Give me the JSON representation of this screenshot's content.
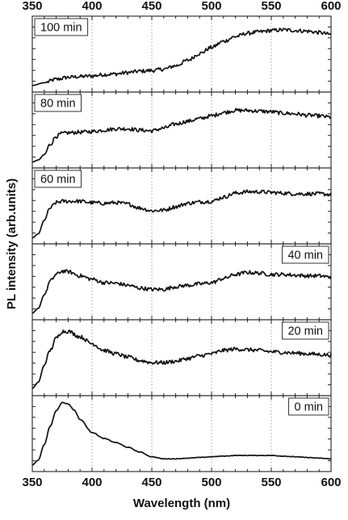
{
  "chart_data": {
    "type": "line",
    "title": "",
    "xlabel": "Wavelength (nm)",
    "ylabel": "PL intensity (arb.units)",
    "xlim": [
      350,
      600
    ],
    "x_ticks": [
      350,
      400,
      450,
      500,
      550,
      600
    ],
    "x_tick_labels": [
      "350",
      "400",
      "450",
      "500",
      "550",
      "600"
    ],
    "ylim": [
      0,
      1
    ],
    "y_tick_labels": "none (arbitrary units)",
    "grid": "vertical dotted lines at 400, 450, 500, 550",
    "layout": "6 vertically stacked panels sharing the x axis; top axis repeats tick labels",
    "panels": [
      {
        "label": "100 min",
        "label_position": "top-left",
        "x": [
          350,
          360,
          370,
          380,
          390,
          400,
          410,
          420,
          430,
          440,
          450,
          460,
          470,
          480,
          490,
          500,
          510,
          520,
          530,
          540,
          550,
          560,
          570,
          580,
          590,
          600
        ],
        "y": [
          0.05,
          0.09,
          0.14,
          0.17,
          0.18,
          0.19,
          0.21,
          0.22,
          0.24,
          0.26,
          0.27,
          0.29,
          0.34,
          0.42,
          0.52,
          0.61,
          0.7,
          0.77,
          0.82,
          0.84,
          0.86,
          0.87,
          0.86,
          0.85,
          0.83,
          0.8
        ]
      },
      {
        "label": "80 min",
        "label_position": "top-left",
        "x": [
          350,
          355,
          360,
          365,
          370,
          375,
          380,
          390,
          400,
          410,
          420,
          430,
          440,
          450,
          460,
          470,
          480,
          490,
          500,
          510,
          520,
          530,
          540,
          550,
          560,
          570,
          580,
          590,
          600
        ],
        "y": [
          0.04,
          0.07,
          0.15,
          0.3,
          0.42,
          0.46,
          0.47,
          0.48,
          0.49,
          0.51,
          0.53,
          0.53,
          0.51,
          0.5,
          0.54,
          0.6,
          0.64,
          0.68,
          0.72,
          0.77,
          0.8,
          0.8,
          0.79,
          0.78,
          0.76,
          0.75,
          0.73,
          0.72,
          0.7
        ]
      },
      {
        "label": "60 min",
        "label_position": "top-left",
        "x": [
          350,
          355,
          360,
          365,
          370,
          375,
          380,
          390,
          400,
          410,
          420,
          430,
          440,
          450,
          460,
          470,
          480,
          490,
          500,
          510,
          520,
          530,
          540,
          550,
          560,
          570,
          580,
          590,
          600
        ],
        "y": [
          0.04,
          0.1,
          0.3,
          0.48,
          0.56,
          0.58,
          0.58,
          0.58,
          0.56,
          0.55,
          0.56,
          0.54,
          0.48,
          0.44,
          0.45,
          0.5,
          0.55,
          0.57,
          0.58,
          0.64,
          0.7,
          0.72,
          0.72,
          0.71,
          0.7,
          0.69,
          0.69,
          0.69,
          0.68
        ]
      },
      {
        "label": "40 min",
        "label_position": "top-right",
        "x": [
          350,
          355,
          360,
          365,
          370,
          375,
          380,
          390,
          400,
          410,
          420,
          430,
          440,
          450,
          460,
          470,
          480,
          490,
          500,
          510,
          520,
          530,
          540,
          550,
          560,
          570,
          580,
          590,
          600
        ],
        "y": [
          0.05,
          0.12,
          0.32,
          0.52,
          0.62,
          0.67,
          0.66,
          0.6,
          0.55,
          0.5,
          0.49,
          0.46,
          0.42,
          0.4,
          0.4,
          0.44,
          0.46,
          0.48,
          0.5,
          0.56,
          0.62,
          0.65,
          0.64,
          0.62,
          0.62,
          0.61,
          0.6,
          0.6,
          0.58
        ]
      },
      {
        "label": "20 min",
        "label_position": "top-right",
        "x": [
          350,
          355,
          360,
          365,
          370,
          375,
          380,
          390,
          400,
          410,
          420,
          430,
          440,
          450,
          460,
          470,
          480,
          490,
          500,
          510,
          520,
          530,
          540,
          550,
          560,
          570,
          580,
          590,
          600
        ],
        "y": [
          0.06,
          0.15,
          0.4,
          0.62,
          0.8,
          0.9,
          0.9,
          0.82,
          0.72,
          0.62,
          0.57,
          0.52,
          0.47,
          0.44,
          0.44,
          0.46,
          0.5,
          0.54,
          0.57,
          0.62,
          0.64,
          0.63,
          0.62,
          0.6,
          0.59,
          0.58,
          0.57,
          0.56,
          0.55
        ]
      },
      {
        "label": "0 min",
        "label_position": "top-right",
        "x": [
          350,
          355,
          360,
          365,
          370,
          375,
          380,
          385,
          390,
          400,
          410,
          420,
          430,
          440,
          450,
          460,
          470,
          480,
          490,
          500,
          510,
          520,
          530,
          540,
          550,
          560,
          570,
          580,
          590,
          600
        ],
        "y": [
          0.05,
          0.12,
          0.35,
          0.62,
          0.85,
          0.97,
          0.95,
          0.86,
          0.72,
          0.53,
          0.44,
          0.38,
          0.31,
          0.24,
          0.17,
          0.14,
          0.14,
          0.15,
          0.16,
          0.17,
          0.18,
          0.19,
          0.19,
          0.19,
          0.19,
          0.18,
          0.17,
          0.16,
          0.15,
          0.14
        ]
      }
    ]
  }
}
